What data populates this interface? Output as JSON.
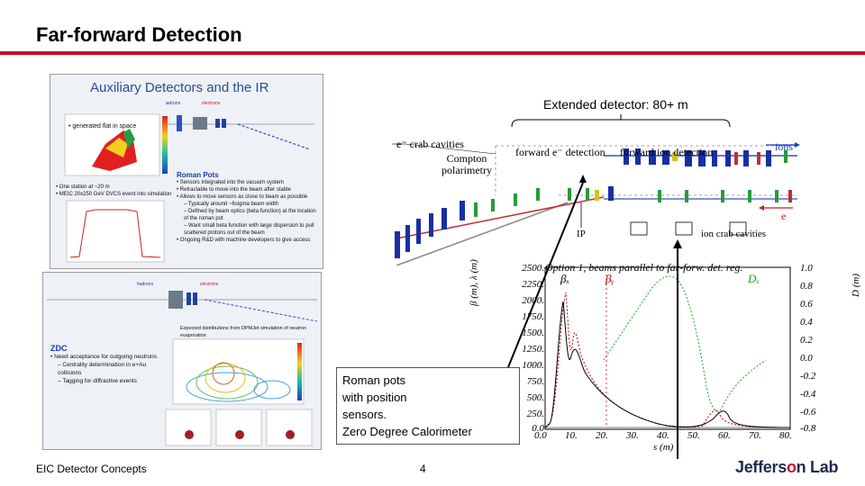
{
  "slide": {
    "title": "Far-forward Detection",
    "footer_left": "EIC Detector Concepts",
    "page_number": "4",
    "logo_prefix": "Jeffers",
    "logo_o": "o",
    "logo_suffix": "n Lab"
  },
  "panel_top": {
    "title": "Auxiliary Detectors and the IR",
    "bullet_flat": "generated flat in space",
    "bullet_station": "One station at ~20 m",
    "bullet_meic": "MEIC 20x250 GeV DVCS event into simulation",
    "roman_pots_head": "Roman Pots",
    "rp_items": [
      "Sensors integrated into the vacuum system",
      "Retractable to move into the beam after stable",
      "Allows to move sensors as close to beam as possible",
      "Typically around ~6sigma beam width",
      "Defined by beam optics (beta function) at the location of the roman pot",
      "Want small beta function with large dispersion to pull scattered protons out of the beam",
      "Ongoing R&D with machine developers to give access"
    ]
  },
  "panel_bottom": {
    "sim_note": "Expected distributions from DPMJet simulation of neutron evaporation",
    "zdc_head": "ZDC",
    "zdc_items": [
      "Need acceptance for outgoing neutrons",
      "Centrality determination in e+Au collisions",
      "Tagging for diffractive events"
    ]
  },
  "callout": {
    "lines": [
      "Roman pots",
      "with position",
      "sensors.",
      "Zero Degree Calorimeter"
    ]
  },
  "ir_diagram": {
    "extended": "Extended detector: 80+ m",
    "e_crab": "e⁻ crab cavities",
    "compton": "Compton polarimetry",
    "fwd_e": "forward e⁻ detection",
    "fwd_ion": "forward ion detection",
    "ions": "ions",
    "e": "e",
    "ip": "IP",
    "ion_crab": "ion crab cavities"
  },
  "optics_plot": {
    "title": "Option 1, beams parallel to far-forw. det. reg.",
    "ylabel_left": "β (m), λ (m)",
    "ylabel_right": "D (m)",
    "xlabel": "s (m)",
    "legend_bx": "βₓ",
    "legend_by": "βᵧ",
    "legend_dx": "Dₓ",
    "yticks_left": [
      "2500.",
      "2250.",
      "2000.",
      "1750.",
      "1500.",
      "1250.",
      "1000.",
      "750.",
      "500.",
      "250.",
      "0.0"
    ],
    "yticks_right": [
      "1.0",
      "0.8",
      "0.6",
      "0.4",
      "0.2",
      "0.0",
      "-0.2",
      "-0.4",
      "-0.6",
      "-0.8"
    ],
    "xticks": [
      "0.0",
      "10.",
      "20.",
      "30.",
      "40.",
      "50.",
      "60.",
      "70.",
      "80."
    ]
  }
}
